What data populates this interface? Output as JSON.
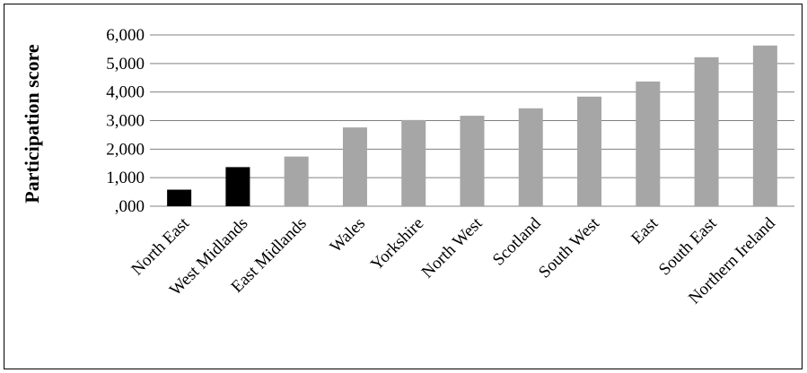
{
  "chart_data": {
    "type": "bar",
    "title": "",
    "xlabel": "",
    "ylabel": "Participation score",
    "ylim": [
      0,
      6000
    ],
    "yticks": [
      {
        "value": 0,
        "label": ",000"
      },
      {
        "value": 1000,
        "label": "1,000"
      },
      {
        "value": 2000,
        "label": "2,000"
      },
      {
        "value": 3000,
        "label": "3,000"
      },
      {
        "value": 4000,
        "label": "4,000"
      },
      {
        "value": 5000,
        "label": "5,000"
      },
      {
        "value": 6000,
        "label": "6,000"
      }
    ],
    "grid": true,
    "categories": [
      "North East",
      "West Midlands",
      "East Midlands",
      "Wales",
      "Yorkshire",
      "North West",
      "Scotland",
      "South West",
      "East",
      "South East",
      "Northern Ireland"
    ],
    "values": [
      580,
      1370,
      1740,
      2760,
      3020,
      3170,
      3430,
      3840,
      4370,
      5220,
      5630
    ],
    "bar_colors": [
      "#000000",
      "#000000",
      "#a6a6a6",
      "#a6a6a6",
      "#a6a6a6",
      "#a6a6a6",
      "#a6a6a6",
      "#a6a6a6",
      "#a6a6a6",
      "#a6a6a6",
      "#a6a6a6"
    ],
    "gridline_color": "#808080",
    "axis_color": "#808080"
  }
}
